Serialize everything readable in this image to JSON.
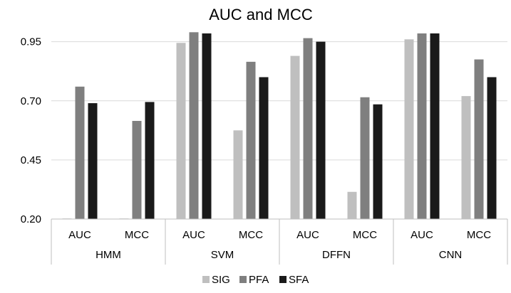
{
  "chart_data": {
    "type": "bar",
    "title": "AUC and MCC",
    "xlabel": "",
    "ylabel": "",
    "ylim": [
      0.2,
      1.0
    ],
    "yticks": [
      "0.20",
      "0.45",
      "0.70",
      "0.95"
    ],
    "grid": true,
    "legend_position": "bottom",
    "groups": [
      "HMM",
      "SVM",
      "DFFN",
      "CNN"
    ],
    "categories": [
      "AUC",
      "MCC",
      "AUC",
      "MCC",
      "AUC",
      "MCC",
      "AUC",
      "MCC"
    ],
    "series": [
      {
        "name": "SIG",
        "color": "#bfbfbf",
        "values": [
          0.2,
          0.2,
          0.945,
          0.575,
          0.89,
          0.315,
          0.96,
          0.72
        ]
      },
      {
        "name": "PFA",
        "color": "#7f7f7f",
        "values": [
          0.76,
          0.615,
          0.99,
          0.865,
          0.965,
          0.715,
          0.985,
          0.875
        ]
      },
      {
        "name": "SFA",
        "color": "#1a1a1a",
        "values": [
          0.69,
          0.695,
          0.985,
          0.8,
          0.95,
          0.685,
          0.985,
          0.8
        ]
      }
    ]
  }
}
